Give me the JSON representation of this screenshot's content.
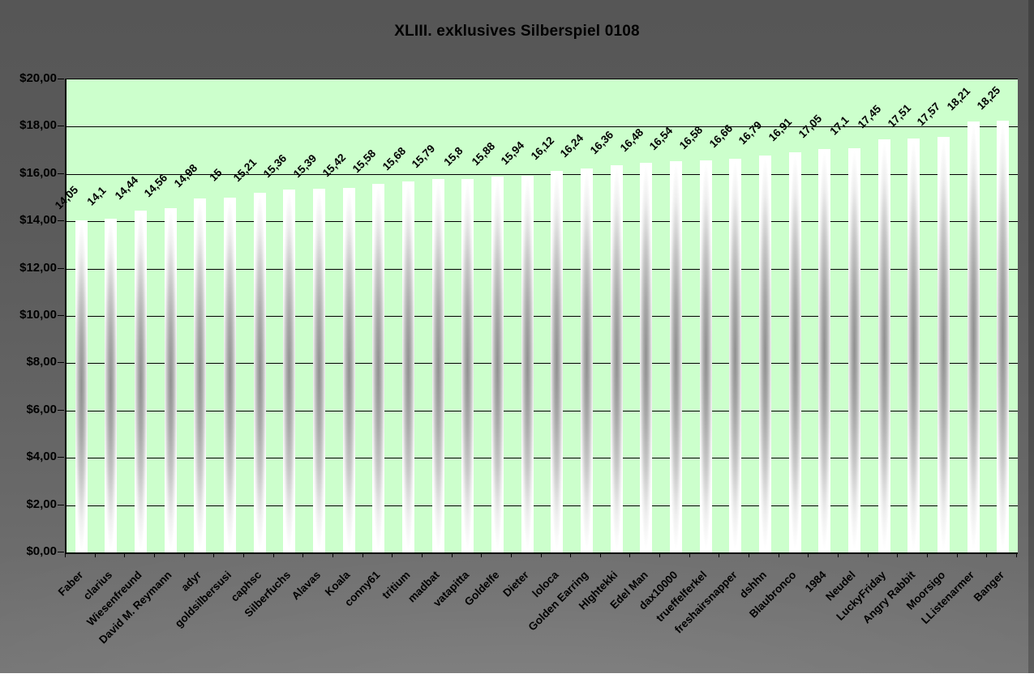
{
  "chart_data": {
    "type": "bar",
    "title": "XLIII. exklusives Silberspiel 0108",
    "categories": [
      "Faber",
      "clarius",
      "Wiesenfreund",
      "David M. Reymann",
      "adyr",
      "goldsilbersusi",
      "caphsc",
      "Silberfuchs",
      "Alavas",
      "Koala",
      "conny61",
      "tritium",
      "madbat",
      "vatapitta",
      "Goldelfe",
      "Dieter",
      "loloca",
      "Golden Earring",
      "HIghtekki",
      "Edel Man",
      "dax10000",
      "trueffelferkel",
      "freshairsnapper",
      "dshhn",
      "Blaubronco",
      "1984",
      "Neudel",
      "LuckyFriday",
      "Angry Rabbit",
      "Moorsigo",
      "LListenarmer",
      "Banger"
    ],
    "values": [
      14.05,
      14.1,
      14.44,
      14.56,
      14.98,
      15,
      15.21,
      15.36,
      15.39,
      15.42,
      15.58,
      15.68,
      15.79,
      15.8,
      15.88,
      15.94,
      16.12,
      16.24,
      16.36,
      16.48,
      16.54,
      16.58,
      16.66,
      16.79,
      16.91,
      17.05,
      17.1,
      17.45,
      17.51,
      17.57,
      18.21,
      18.25
    ],
    "value_labels": [
      "14,05",
      "14,1",
      "14,44",
      "14,56",
      "14,98",
      "15",
      "15,21",
      "15,36",
      "15,39",
      "15,42",
      "15,58",
      "15,68",
      "15,79",
      "15,8",
      "15,88",
      "15,94",
      "16,12",
      "16,24",
      "16,36",
      "16,48",
      "16,54",
      "16,58",
      "16,66",
      "16,79",
      "16,91",
      "17,05",
      "17,1",
      "17,45",
      "17,51",
      "17,57",
      "18,21",
      "18,25"
    ],
    "y_axis": {
      "tick_labels_top_to_bottom": [
        "$20,00",
        "$18,00",
        "$16,00",
        "$14,00",
        "$12,00",
        "$10,00",
        "$8,00",
        "$6,00",
        "$4,00",
        "$2,00",
        "$0,00"
      ],
      "min": 0,
      "max": 20,
      "step": 2,
      "currency_prefix": "$",
      "decimal_separator": ","
    },
    "x_axis": {
      "label_rotation_deg": 45
    },
    "grid": true,
    "legend": false,
    "colors": {
      "plot_background": "#ccffcc",
      "chart_background_top": "#565656",
      "chart_background_bottom": "#747474",
      "gridline": "#000000",
      "text": "#000000",
      "bar_center": "#8f8f8f",
      "bar_edge": "#ffffff"
    }
  }
}
